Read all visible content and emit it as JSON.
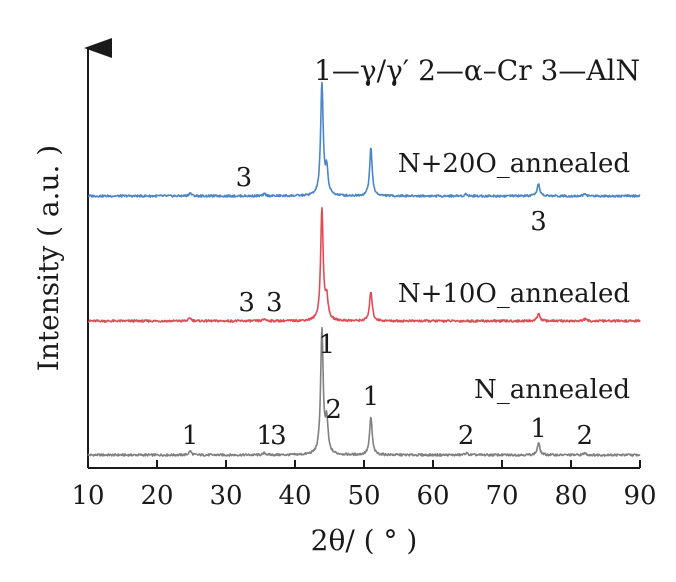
{
  "chart_data": {
    "type": "line",
    "xlabel": "2θ/ ( ° )",
    "ylabel": "Intensity ( a.u. )",
    "xlim": [
      10,
      90
    ],
    "x_ticks": [
      "10",
      "20",
      "30",
      "40",
      "50",
      "60",
      "70",
      "80",
      "90"
    ],
    "y_ticks_shown": false,
    "grid": false,
    "legend_text": "1—γ/γ′  2—α–Cr  3—AlN",
    "legend_position": "top-right",
    "series": [
      {
        "name": "N_annealed",
        "color": "#808080",
        "baseline": 0,
        "peaks": [
          {
            "x": 24.8,
            "height": 4
          },
          {
            "x": 35.6,
            "height": 2
          },
          {
            "x": 43.9,
            "height": 125
          },
          {
            "x": 44.6,
            "height": 32
          },
          {
            "x": 51.0,
            "height": 38
          },
          {
            "x": 64.8,
            "height": 2
          },
          {
            "x": 75.3,
            "height": 12
          },
          {
            "x": 82.0,
            "height": 2
          }
        ],
        "labels": [
          {
            "text": "1",
            "x": 24.8
          },
          {
            "text": "1",
            "x": 35.6
          },
          {
            "text": "3",
            "x": 37.6
          },
          {
            "text": "1",
            "x": 44.6
          },
          {
            "text": "2",
            "x": 45.6
          },
          {
            "text": "1",
            "x": 51.0
          },
          {
            "text": "2",
            "x": 64.8
          },
          {
            "text": "1",
            "x": 75.3
          },
          {
            "text": "2",
            "x": 82.0
          }
        ]
      },
      {
        "name": "N+10O_annealed",
        "color": "#e04c55",
        "baseline": 0,
        "peaks": [
          {
            "x": 24.8,
            "height": 3
          },
          {
            "x": 35.6,
            "height": 2
          },
          {
            "x": 43.9,
            "height": 112
          },
          {
            "x": 44.6,
            "height": 22
          },
          {
            "x": 51.0,
            "height": 30
          },
          {
            "x": 75.3,
            "height": 8
          },
          {
            "x": 82.0,
            "height": 2
          }
        ],
        "labels": [
          {
            "text": "3",
            "x": 33.0
          },
          {
            "text": "3",
            "x": 37.0
          }
        ]
      },
      {
        "name": "N+20O_annealed",
        "color": "#4a86c8",
        "baseline": 0,
        "peaks": [
          {
            "x": 24.8,
            "height": 3
          },
          {
            "x": 35.6,
            "height": 2
          },
          {
            "x": 43.9,
            "height": 112
          },
          {
            "x": 44.6,
            "height": 25
          },
          {
            "x": 51.0,
            "height": 48
          },
          {
            "x": 64.8,
            "height": 2
          },
          {
            "x": 75.3,
            "height": 12
          },
          {
            "x": 82.0,
            "height": 2
          }
        ],
        "labels": [
          {
            "text": "3",
            "x": 32.6
          },
          {
            "text": "3",
            "x": 75.3
          }
        ]
      }
    ]
  }
}
